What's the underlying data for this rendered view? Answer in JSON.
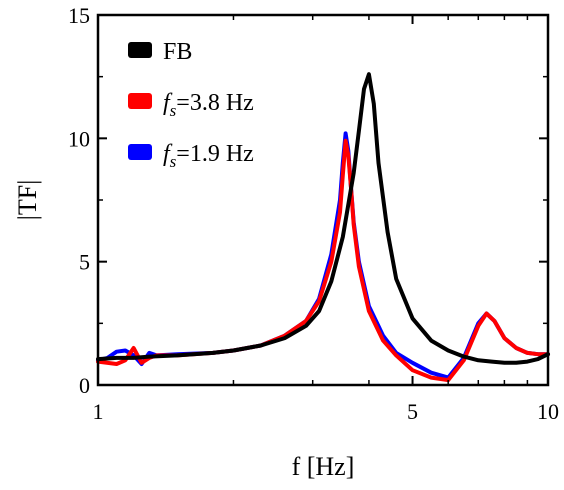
{
  "chart_data": {
    "type": "line",
    "xlabel": "f [Hz]",
    "ylabel": "|TF|",
    "x_scale": "log",
    "xlim": [
      1,
      10
    ],
    "ylim": [
      0,
      15
    ],
    "x_ticks": [
      1,
      5,
      10
    ],
    "x_tick_labels": [
      "1",
      "5",
      "10"
    ],
    "y_ticks": [
      0,
      5,
      10,
      15
    ],
    "y_tick_labels": [
      "0",
      "5",
      "10",
      "15"
    ],
    "grid": false,
    "legend_position": "top-left",
    "series": [
      {
        "name": "FB",
        "name_prefix": "",
        "name_subscript": "",
        "name_suffix": "FB",
        "color": "#000000",
        "x": [
          1.0,
          1.1,
          1.2,
          1.3,
          1.5,
          1.8,
          2.0,
          2.3,
          2.6,
          2.9,
          3.1,
          3.3,
          3.5,
          3.7,
          3.8,
          3.9,
          4.0,
          4.1,
          4.2,
          4.4,
          4.6,
          5.0,
          5.5,
          6.0,
          6.5,
          7.0,
          7.5,
          8.0,
          8.5,
          9.0,
          9.5,
          10.0
        ],
        "y": [
          1.05,
          1.1,
          1.1,
          1.15,
          1.2,
          1.3,
          1.4,
          1.6,
          1.9,
          2.4,
          3.0,
          4.2,
          6.0,
          8.6,
          10.3,
          12.0,
          12.6,
          11.4,
          9.0,
          6.2,
          4.3,
          2.7,
          1.8,
          1.4,
          1.15,
          1.0,
          0.95,
          0.9,
          0.9,
          0.95,
          1.05,
          1.25
        ]
      },
      {
        "name": "fs=3.8 Hz",
        "name_prefix": "f",
        "name_subscript": "s",
        "name_suffix": "=3.8 Hz",
        "color": "#ff0000",
        "x": [
          1.0,
          1.1,
          1.15,
          1.2,
          1.25,
          1.3,
          1.35,
          1.5,
          1.8,
          2.0,
          2.3,
          2.6,
          2.9,
          3.1,
          3.3,
          3.45,
          3.5,
          3.55,
          3.6,
          3.65,
          3.7,
          3.8,
          4.0,
          4.3,
          4.6,
          5.0,
          5.5,
          6.0,
          6.5,
          7.0,
          7.3,
          7.6,
          8.0,
          8.5,
          9.0,
          9.5,
          10.0
        ],
        "y": [
          0.95,
          0.85,
          1.0,
          1.5,
          0.9,
          1.1,
          1.2,
          1.2,
          1.3,
          1.4,
          1.6,
          2.0,
          2.6,
          3.4,
          5.0,
          7.0,
          8.5,
          9.9,
          9.3,
          8.0,
          6.5,
          4.8,
          3.0,
          1.8,
          1.2,
          0.6,
          0.3,
          0.2,
          1.0,
          2.4,
          2.9,
          2.6,
          1.9,
          1.5,
          1.3,
          1.25,
          1.25
        ]
      },
      {
        "name": "fs=1.9 Hz",
        "name_prefix": "f",
        "name_subscript": "s",
        "name_suffix": "=1.9 Hz",
        "color": "#0000ff",
        "x": [
          1.0,
          1.05,
          1.1,
          1.15,
          1.2,
          1.25,
          1.3,
          1.35,
          1.5,
          1.8,
          2.0,
          2.3,
          2.6,
          2.9,
          3.1,
          3.3,
          3.45,
          3.5,
          3.55,
          3.6,
          3.65,
          3.7,
          3.8,
          4.0,
          4.3,
          4.6,
          5.0,
          5.5,
          6.0,
          6.5,
          7.0,
          7.3,
          7.6,
          8.0,
          8.5,
          9.0,
          9.5,
          10.0
        ],
        "y": [
          1.0,
          1.1,
          1.35,
          1.4,
          1.2,
          0.85,
          1.3,
          1.2,
          1.25,
          1.3,
          1.4,
          1.6,
          2.0,
          2.6,
          3.5,
          5.3,
          7.5,
          9.0,
          10.2,
          9.5,
          8.0,
          6.6,
          5.0,
          3.2,
          2.0,
          1.3,
          0.9,
          0.5,
          0.3,
          1.1,
          2.5,
          2.9,
          2.6,
          1.9,
          1.5,
          1.3,
          1.25,
          1.25
        ]
      }
    ]
  }
}
